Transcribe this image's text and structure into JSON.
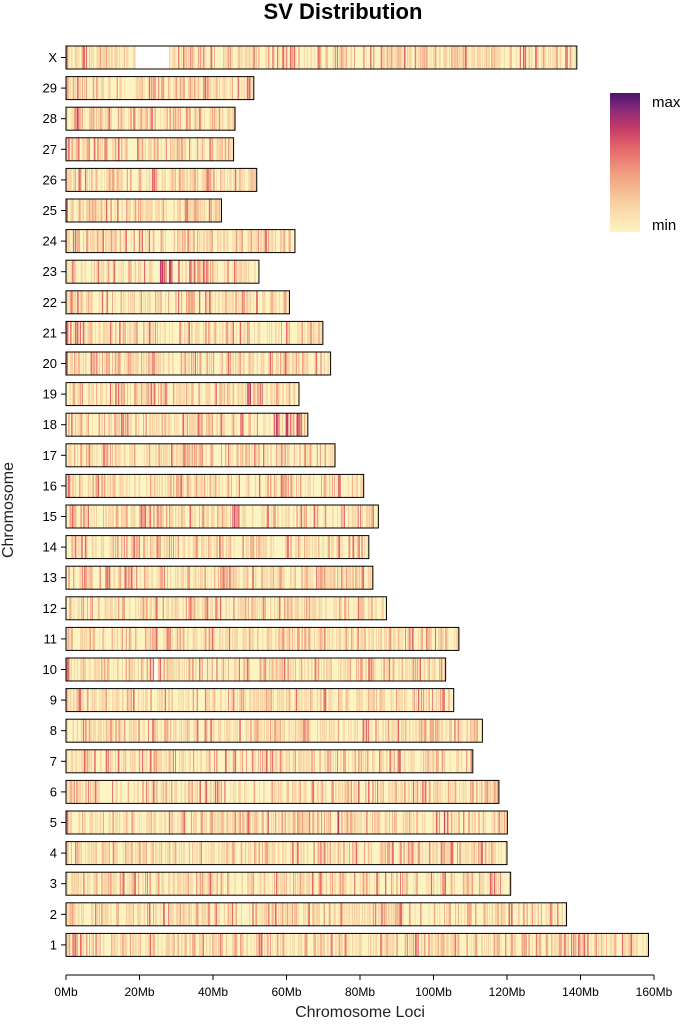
{
  "chart_data": {
    "type": "heatmap",
    "title": "SV Distribution",
    "xlabel": "Chromosome Loci",
    "ylabel": "Chromosome",
    "x_unit": "Mb",
    "xlim": [
      0,
      160
    ],
    "x_ticks": [
      0,
      20,
      40,
      60,
      80,
      100,
      120,
      140,
      160
    ],
    "x_tick_labels": [
      "0Mb",
      "20Mb",
      "40Mb",
      "60Mb",
      "80Mb",
      "100Mb",
      "120Mb",
      "140Mb",
      "160Mb"
    ],
    "legend": {
      "max_label": "max",
      "min_label": "min",
      "position": "top-right"
    },
    "colors": [
      "#fdf4c4",
      "#f9d2a3",
      "#f2a381",
      "#e5686b",
      "#c43a69",
      "#8a2a78",
      "#4a1470"
    ],
    "chromosomes": [
      {
        "name": "X",
        "length_mb": 139.0,
        "hotspots": [
          [
            5,
            0.5
          ],
          [
            33,
            0.4
          ],
          [
            124,
            0.6
          ],
          [
            136,
            0.5
          ]
        ],
        "gap": [
          19,
          28
        ]
      },
      {
        "name": "29",
        "length_mb": 51.1,
        "hotspots": [
          [
            6,
            0.5
          ],
          [
            27,
            0.45
          ],
          [
            38,
            0.4
          ]
        ]
      },
      {
        "name": "28",
        "length_mb": 46.0,
        "hotspots": [
          [
            3,
            0.55
          ],
          [
            30,
            0.35
          ]
        ]
      },
      {
        "name": "27",
        "length_mb": 45.6,
        "hotspots": [
          [
            7,
            0.6
          ],
          [
            25,
            0.35
          ]
        ]
      },
      {
        "name": "26",
        "length_mb": 51.9,
        "hotspots": [
          [
            4,
            0.4
          ],
          [
            30,
            0.3
          ]
        ]
      },
      {
        "name": "25",
        "length_mb": 42.3,
        "hotspots": [
          [
            11,
            0.35
          ]
        ]
      },
      {
        "name": "24",
        "length_mb": 62.3,
        "hotspots": [
          [
            2,
            0.4
          ],
          [
            40,
            0.3
          ]
        ]
      },
      {
        "name": "23",
        "length_mb": 52.5,
        "hotspots": [
          [
            26,
            0.7
          ],
          [
            28,
            0.7
          ],
          [
            30,
            0.55
          ],
          [
            35,
            0.4
          ]
        ]
      },
      {
        "name": "22",
        "length_mb": 60.8,
        "hotspots": [
          [
            35,
            0.35
          ]
        ]
      },
      {
        "name": "21",
        "length_mb": 69.9,
        "hotspots": [
          [
            0.5,
            0.6
          ],
          [
            20,
            0.75
          ],
          [
            45,
            0.3
          ]
        ]
      },
      {
        "name": "20",
        "length_mb": 72.0,
        "hotspots": [
          [
            7,
            0.4
          ],
          [
            40,
            0.3
          ]
        ]
      },
      {
        "name": "19",
        "length_mb": 63.4,
        "hotspots": [
          [
            24,
            0.4
          ],
          [
            50,
            0.65
          ],
          [
            53,
            0.4
          ]
        ]
      },
      {
        "name": "18",
        "length_mb": 65.8,
        "hotspots": [
          [
            15,
            0.4
          ],
          [
            48,
            0.45
          ],
          [
            57,
            0.6
          ],
          [
            60,
            0.6
          ],
          [
            63,
            0.55
          ]
        ]
      },
      {
        "name": "17",
        "length_mb": 73.2,
        "hotspots": [
          [
            12,
            0.35
          ],
          [
            40,
            0.3
          ]
        ]
      },
      {
        "name": "16",
        "length_mb": 81.0,
        "hotspots": [
          [
            9,
            0.35
          ],
          [
            60,
            0.3
          ]
        ]
      },
      {
        "name": "15",
        "length_mb": 85.0,
        "hotspots": [
          [
            46,
            0.7
          ],
          [
            76,
            0.5
          ]
        ]
      },
      {
        "name": "14",
        "length_mb": 82.4,
        "hotspots": [
          [
            14,
            0.35
          ],
          [
            62,
            0.3
          ]
        ]
      },
      {
        "name": "13",
        "length_mb": 83.5,
        "hotspots": [
          [
            11,
            0.5
          ],
          [
            43,
            0.3
          ]
        ]
      },
      {
        "name": "12",
        "length_mb": 87.2,
        "hotspots": [
          [
            5,
            0.35
          ],
          [
            45,
            0.3
          ]
        ]
      },
      {
        "name": "11",
        "length_mb": 106.9,
        "hotspots": [
          [
            25,
            0.4
          ],
          [
            94,
            0.45
          ]
        ]
      },
      {
        "name": "10",
        "length_mb": 103.3,
        "hotspots": [
          [
            23,
            0.6
          ],
          [
            26,
            0.55
          ],
          [
            80,
            0.3
          ]
        ],
        "gap": [
          24,
          25
        ]
      },
      {
        "name": "9",
        "length_mb": 105.5,
        "hotspots": [
          [
            70,
            0.35
          ]
        ]
      },
      {
        "name": "8",
        "length_mb": 113.3,
        "hotspots": [
          [
            23,
            0.75
          ],
          [
            65,
            0.45
          ],
          [
            100,
            0.3
          ]
        ]
      },
      {
        "name": "7",
        "length_mb": 110.7,
        "hotspots": [
          [
            11,
            0.6
          ],
          [
            68,
            0.4
          ]
        ]
      },
      {
        "name": "6",
        "length_mb": 117.8,
        "hotspots": [
          [
            22,
            0.35
          ],
          [
            84,
            0.3
          ]
        ]
      },
      {
        "name": "5",
        "length_mb": 120.1,
        "hotspots": [
          [
            74,
            0.65
          ],
          [
            102,
            0.65
          ],
          [
            103,
            0.6
          ]
        ]
      },
      {
        "name": "4",
        "length_mb": 120.0,
        "hotspots": [
          [
            33,
            0.4
          ],
          [
            106,
            0.45
          ],
          [
            113,
            0.5
          ]
        ]
      },
      {
        "name": "3",
        "length_mb": 121.0,
        "hotspots": [
          [
            22,
            0.35
          ],
          [
            120,
            0.4
          ]
        ]
      },
      {
        "name": "2",
        "length_mb": 136.2,
        "hotspots": [
          [
            90,
            0.3
          ],
          [
            122,
            0.4
          ]
        ]
      },
      {
        "name": "1",
        "length_mb": 158.5,
        "hotspots": [
          [
            43,
            0.4
          ],
          [
            125,
            0.35
          ]
        ]
      }
    ]
  }
}
